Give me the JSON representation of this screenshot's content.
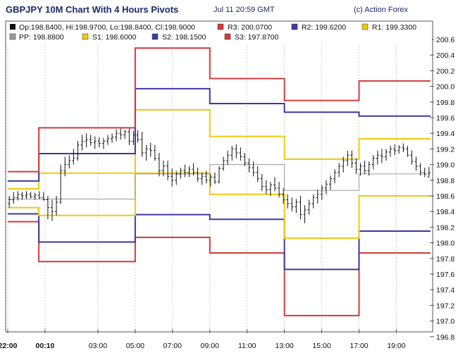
{
  "header": {
    "title": "GBPJPY 10M Chart With 4 Hours Pivots",
    "timestamp": "Jul 11 20:59 GMT",
    "credit": "(c) Action Forex"
  },
  "legend": {
    "ohlc": "Op:198.8400, Hi:198.9700, Lo:198.8400, Cl:198.9000",
    "items": [
      {
        "key": "R3",
        "label": "R3: 200.0700",
        "color": "#d23a3a"
      },
      {
        "key": "R2",
        "label": "R2: 199.6200",
        "color": "#3a3aa0"
      },
      {
        "key": "R1",
        "label": "R1: 199.3300",
        "color": "#f0c810"
      },
      {
        "key": "PP",
        "label": "PP: 198.8800",
        "color": "#9a9a9a"
      },
      {
        "key": "S1",
        "label": "S1: 198.6000",
        "color": "#f0c810"
      },
      {
        "key": "S2",
        "label": "S2: 198.1500",
        "color": "#3a3aa0"
      },
      {
        "key": "S3",
        "label": "S3: 197.8700",
        "color": "#d23a3a"
      }
    ]
  },
  "chart_data": {
    "type": "line",
    "ylim": [
      196.8,
      200.7
    ],
    "y_ticks": [
      "200.6",
      "200.4",
      "200.2",
      "200.0",
      "199.8",
      "199.6",
      "199.4",
      "199.2",
      "199.0",
      "198.8",
      "198.6",
      "198.4",
      "198.2",
      "198.0",
      "197.8",
      "197.6",
      "197.4",
      "197.2",
      "197.0",
      "196.8"
    ],
    "x_ticks": [
      {
        "label": "22:00",
        "x": 0,
        "bold": true
      },
      {
        "label": "00:10",
        "x": 12,
        "bold": true
      },
      {
        "label": "03:00",
        "x": 29
      },
      {
        "label": "05:00",
        "x": 41
      },
      {
        "label": "07:00",
        "x": 53
      },
      {
        "label": "09:00",
        "x": 65
      },
      {
        "label": "11:00",
        "x": 77
      },
      {
        "label": "13:00",
        "x": 89
      },
      {
        "label": "15:00",
        "x": 101
      },
      {
        "label": "17:00",
        "x": 113
      },
      {
        "label": "19:00",
        "x": 125
      }
    ],
    "x_range": [
      0,
      136
    ],
    "periods": [
      {
        "x0": 0,
        "x1": 10,
        "R3": 198.91,
        "R2": 198.79,
        "R1": 198.69,
        "PP": 198.56,
        "S1": 198.45,
        "S2": 198.37,
        "S3": 198.27
      },
      {
        "x0": 10,
        "x1": 41,
        "R3": 199.47,
        "R2": 199.14,
        "R1": 198.89,
        "PP": 198.56,
        "S1": 198.35,
        "S2": 198.01,
        "S3": 197.76
      },
      {
        "x0": 41,
        "x1": 65,
        "R3": 200.49,
        "R2": 199.97,
        "R1": 199.7,
        "PP": 198.88,
        "S1": 198.89,
        "S2": 198.36,
        "S3": 198.07
      },
      {
        "x0": 65,
        "x1": 89,
        "R3": 200.1,
        "R2": 199.78,
        "R1": 199.36,
        "PP": 199.0,
        "S1": 198.62,
        "S2": 198.3,
        "S3": 197.87
      },
      {
        "x0": 89,
        "x1": 113,
        "R3": 199.82,
        "R2": 199.67,
        "R1": 199.07,
        "PP": 198.67,
        "S1": 198.06,
        "S2": 197.66,
        "S3": 197.07
      },
      {
        "x0": 113,
        "x1": 136,
        "R3": 200.07,
        "R2": 199.62,
        "R1": 199.33,
        "PP": 198.88,
        "S1": 198.6,
        "S2": 198.15,
        "S3": 197.87
      }
    ],
    "bars": [
      {
        "o": 198.5,
        "h": 198.6,
        "l": 198.45,
        "c": 198.55
      },
      {
        "o": 198.55,
        "h": 198.65,
        "l": 198.5,
        "c": 198.58
      },
      {
        "o": 198.58,
        "h": 198.66,
        "l": 198.54,
        "c": 198.62
      },
      {
        "o": 198.62,
        "h": 198.65,
        "l": 198.55,
        "c": 198.6
      },
      {
        "o": 198.6,
        "h": 198.66,
        "l": 198.56,
        "c": 198.62
      },
      {
        "o": 198.62,
        "h": 198.65,
        "l": 198.57,
        "c": 198.59
      },
      {
        "o": 198.59,
        "h": 198.64,
        "l": 198.55,
        "c": 198.61
      },
      {
        "o": 198.61,
        "h": 198.66,
        "l": 198.56,
        "c": 198.58
      },
      {
        "o": 198.58,
        "h": 198.65,
        "l": 198.54,
        "c": 198.55
      },
      {
        "o": 198.55,
        "h": 198.6,
        "l": 198.3,
        "c": 198.45
      },
      {
        "o": 198.45,
        "h": 198.55,
        "l": 198.28,
        "c": 198.4
      },
      {
        "o": 198.4,
        "h": 198.6,
        "l": 198.35,
        "c": 198.52
      },
      {
        "o": 198.52,
        "h": 199.0,
        "l": 198.5,
        "c": 198.92
      },
      {
        "o": 198.92,
        "h": 199.1,
        "l": 198.85,
        "c": 199.0
      },
      {
        "o": 199.0,
        "h": 199.12,
        "l": 198.95,
        "c": 199.05
      },
      {
        "o": 199.05,
        "h": 199.2,
        "l": 199.0,
        "c": 199.08
      },
      {
        "o": 199.08,
        "h": 199.3,
        "l": 199.05,
        "c": 199.25
      },
      {
        "o": 199.25,
        "h": 199.38,
        "l": 199.18,
        "c": 199.3
      },
      {
        "o": 199.3,
        "h": 199.4,
        "l": 199.22,
        "c": 199.32
      },
      {
        "o": 199.32,
        "h": 199.38,
        "l": 199.24,
        "c": 199.28
      },
      {
        "o": 199.28,
        "h": 199.36,
        "l": 199.2,
        "c": 199.3
      },
      {
        "o": 199.3,
        "h": 199.35,
        "l": 199.22,
        "c": 199.27
      },
      {
        "o": 199.27,
        "h": 199.34,
        "l": 199.2,
        "c": 199.3
      },
      {
        "o": 199.3,
        "h": 199.38,
        "l": 199.25,
        "c": 199.33
      },
      {
        "o": 199.33,
        "h": 199.4,
        "l": 199.28,
        "c": 199.35
      },
      {
        "o": 199.35,
        "h": 199.45,
        "l": 199.3,
        "c": 199.4
      },
      {
        "o": 199.4,
        "h": 199.46,
        "l": 199.32,
        "c": 199.38
      },
      {
        "o": 199.38,
        "h": 199.44,
        "l": 199.33,
        "c": 199.42
      },
      {
        "o": 199.42,
        "h": 199.46,
        "l": 199.25,
        "c": 199.3
      },
      {
        "o": 199.3,
        "h": 199.43,
        "l": 199.25,
        "c": 199.38
      },
      {
        "o": 199.38,
        "h": 199.44,
        "l": 199.28,
        "c": 199.32
      },
      {
        "o": 199.32,
        "h": 199.42,
        "l": 199.1,
        "c": 199.15
      },
      {
        "o": 199.15,
        "h": 199.25,
        "l": 199.05,
        "c": 199.2
      },
      {
        "o": 199.2,
        "h": 199.28,
        "l": 199.1,
        "c": 199.18
      },
      {
        "o": 199.18,
        "h": 199.25,
        "l": 199.05,
        "c": 199.08
      },
      {
        "o": 199.08,
        "h": 199.15,
        "l": 198.85,
        "c": 198.92
      },
      {
        "o": 198.92,
        "h": 199.05,
        "l": 198.85,
        "c": 198.98
      },
      {
        "o": 198.98,
        "h": 199.05,
        "l": 198.8,
        "c": 198.85
      },
      {
        "o": 198.85,
        "h": 198.95,
        "l": 198.72,
        "c": 198.8
      },
      {
        "o": 198.8,
        "h": 198.92,
        "l": 198.74,
        "c": 198.88
      },
      {
        "o": 198.88,
        "h": 198.96,
        "l": 198.82,
        "c": 198.92
      },
      {
        "o": 198.92,
        "h": 199.0,
        "l": 198.84,
        "c": 198.9
      },
      {
        "o": 198.9,
        "h": 198.98,
        "l": 198.84,
        "c": 198.94
      },
      {
        "o": 198.94,
        "h": 199.02,
        "l": 198.86,
        "c": 198.9
      },
      {
        "o": 198.9,
        "h": 198.96,
        "l": 198.78,
        "c": 198.82
      },
      {
        "o": 198.82,
        "h": 198.9,
        "l": 198.74,
        "c": 198.85
      },
      {
        "o": 198.85,
        "h": 198.92,
        "l": 198.76,
        "c": 198.8
      },
      {
        "o": 198.8,
        "h": 198.88,
        "l": 198.72,
        "c": 198.84
      },
      {
        "o": 198.84,
        "h": 198.9,
        "l": 198.75,
        "c": 198.78
      },
      {
        "o": 198.78,
        "h": 198.98,
        "l": 198.76,
        "c": 198.95
      },
      {
        "o": 198.95,
        "h": 199.1,
        "l": 198.92,
        "c": 199.05
      },
      {
        "o": 199.05,
        "h": 199.18,
        "l": 199.0,
        "c": 199.12
      },
      {
        "o": 199.12,
        "h": 199.24,
        "l": 199.05,
        "c": 199.2
      },
      {
        "o": 199.2,
        "h": 199.26,
        "l": 199.08,
        "c": 199.15
      },
      {
        "o": 199.15,
        "h": 199.22,
        "l": 199.05,
        "c": 199.1
      },
      {
        "o": 199.1,
        "h": 199.15,
        "l": 198.98,
        "c": 199.02
      },
      {
        "o": 199.02,
        "h": 199.08,
        "l": 198.9,
        "c": 198.96
      },
      {
        "o": 198.96,
        "h": 199.04,
        "l": 198.85,
        "c": 198.9
      },
      {
        "o": 198.9,
        "h": 198.98,
        "l": 198.78,
        "c": 198.82
      },
      {
        "o": 198.82,
        "h": 198.88,
        "l": 198.66,
        "c": 198.72
      },
      {
        "o": 198.72,
        "h": 198.8,
        "l": 198.62,
        "c": 198.68
      },
      {
        "o": 198.68,
        "h": 198.78,
        "l": 198.6,
        "c": 198.74
      },
      {
        "o": 198.74,
        "h": 198.84,
        "l": 198.66,
        "c": 198.7
      },
      {
        "o": 198.7,
        "h": 198.78,
        "l": 198.58,
        "c": 198.62
      },
      {
        "o": 198.62,
        "h": 198.7,
        "l": 198.5,
        "c": 198.55
      },
      {
        "o": 198.55,
        "h": 198.62,
        "l": 198.44,
        "c": 198.5
      },
      {
        "o": 198.5,
        "h": 198.58,
        "l": 198.4,
        "c": 198.46
      },
      {
        "o": 198.46,
        "h": 198.56,
        "l": 198.38,
        "c": 198.52
      },
      {
        "o": 198.52,
        "h": 198.6,
        "l": 198.3,
        "c": 198.36
      },
      {
        "o": 198.36,
        "h": 198.48,
        "l": 198.25,
        "c": 198.42
      },
      {
        "o": 198.42,
        "h": 198.55,
        "l": 198.36,
        "c": 198.5
      },
      {
        "o": 198.5,
        "h": 198.62,
        "l": 198.44,
        "c": 198.58
      },
      {
        "o": 198.58,
        "h": 198.68,
        "l": 198.5,
        "c": 198.62
      },
      {
        "o": 198.62,
        "h": 198.74,
        "l": 198.55,
        "c": 198.7
      },
      {
        "o": 198.7,
        "h": 198.8,
        "l": 198.62,
        "c": 198.75
      },
      {
        "o": 198.75,
        "h": 198.86,
        "l": 198.68,
        "c": 198.82
      },
      {
        "o": 198.82,
        "h": 198.94,
        "l": 198.76,
        "c": 198.9
      },
      {
        "o": 198.9,
        "h": 199.02,
        "l": 198.84,
        "c": 198.98
      },
      {
        "o": 198.98,
        "h": 199.1,
        "l": 198.9,
        "c": 199.05
      },
      {
        "o": 199.05,
        "h": 199.18,
        "l": 198.98,
        "c": 199.12
      },
      {
        "o": 199.12,
        "h": 199.18,
        "l": 198.96,
        "c": 199.02
      },
      {
        "o": 199.02,
        "h": 199.08,
        "l": 198.88,
        "c": 198.94
      },
      {
        "o": 198.94,
        "h": 199.02,
        "l": 198.86,
        "c": 198.98
      },
      {
        "o": 198.98,
        "h": 199.05,
        "l": 198.88,
        "c": 198.92
      },
      {
        "o": 198.92,
        "h": 199.04,
        "l": 198.86,
        "c": 199.0
      },
      {
        "o": 199.0,
        "h": 199.12,
        "l": 198.94,
        "c": 199.08
      },
      {
        "o": 199.08,
        "h": 199.18,
        "l": 199.0,
        "c": 199.12
      },
      {
        "o": 199.12,
        "h": 199.2,
        "l": 199.02,
        "c": 199.1
      },
      {
        "o": 199.1,
        "h": 199.2,
        "l": 199.05,
        "c": 199.16
      },
      {
        "o": 199.16,
        "h": 199.24,
        "l": 199.1,
        "c": 199.2
      },
      {
        "o": 199.2,
        "h": 199.26,
        "l": 199.12,
        "c": 199.18
      },
      {
        "o": 199.18,
        "h": 199.25,
        "l": 199.14,
        "c": 199.22
      },
      {
        "o": 199.22,
        "h": 199.27,
        "l": 199.16,
        "c": 199.2
      },
      {
        "o": 199.2,
        "h": 199.24,
        "l": 199.1,
        "c": 199.12
      },
      {
        "o": 199.12,
        "h": 199.18,
        "l": 199.0,
        "c": 199.04
      },
      {
        "o": 199.04,
        "h": 199.1,
        "l": 198.92,
        "c": 198.98
      },
      {
        "o": 198.98,
        "h": 199.02,
        "l": 198.86,
        "c": 198.9
      },
      {
        "o": 198.9,
        "h": 198.96,
        "l": 198.84,
        "c": 198.88
      },
      {
        "o": 198.84,
        "h": 198.97,
        "l": 198.84,
        "c": 198.9
      }
    ]
  }
}
